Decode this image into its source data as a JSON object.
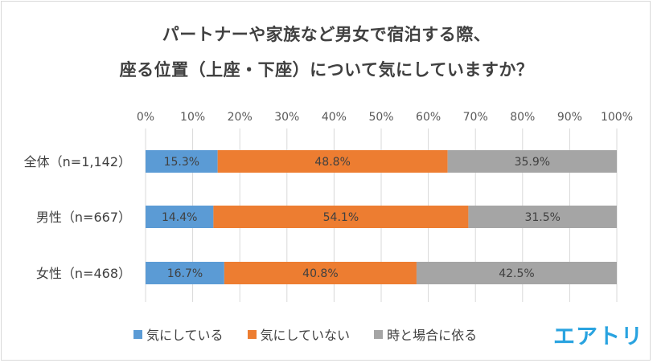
{
  "chart_data": {
    "type": "bar",
    "orientation": "horizontal",
    "stacked": true,
    "title_lines": [
      "パートナーや家族など男女で宿泊する際、",
      "座る位置（上座・下座）について気にしていますか？"
    ],
    "categories": [
      "全体（n=1,142）",
      "男性（n=667）",
      "女性（n=468）"
    ],
    "series": [
      {
        "name": "気にしている",
        "color": "#5b9bd5",
        "values": [
          15.3,
          14.4,
          16.7
        ]
      },
      {
        "name": "気にしていない",
        "color": "#ed7d31",
        "values": [
          48.8,
          54.1,
          40.8
        ]
      },
      {
        "name": "時と場合に依る",
        "color": "#a5a5a5",
        "values": [
          35.9,
          31.5,
          42.5
        ]
      }
    ],
    "value_suffix": "%",
    "xlim": [
      0,
      100
    ],
    "xticks": [
      "0%",
      "10%",
      "20%",
      "30%",
      "40%",
      "50%",
      "60%",
      "70%",
      "80%",
      "90%",
      "100%"
    ],
    "grid": true,
    "legend_position": "bottom"
  },
  "logo": "エアトリ"
}
